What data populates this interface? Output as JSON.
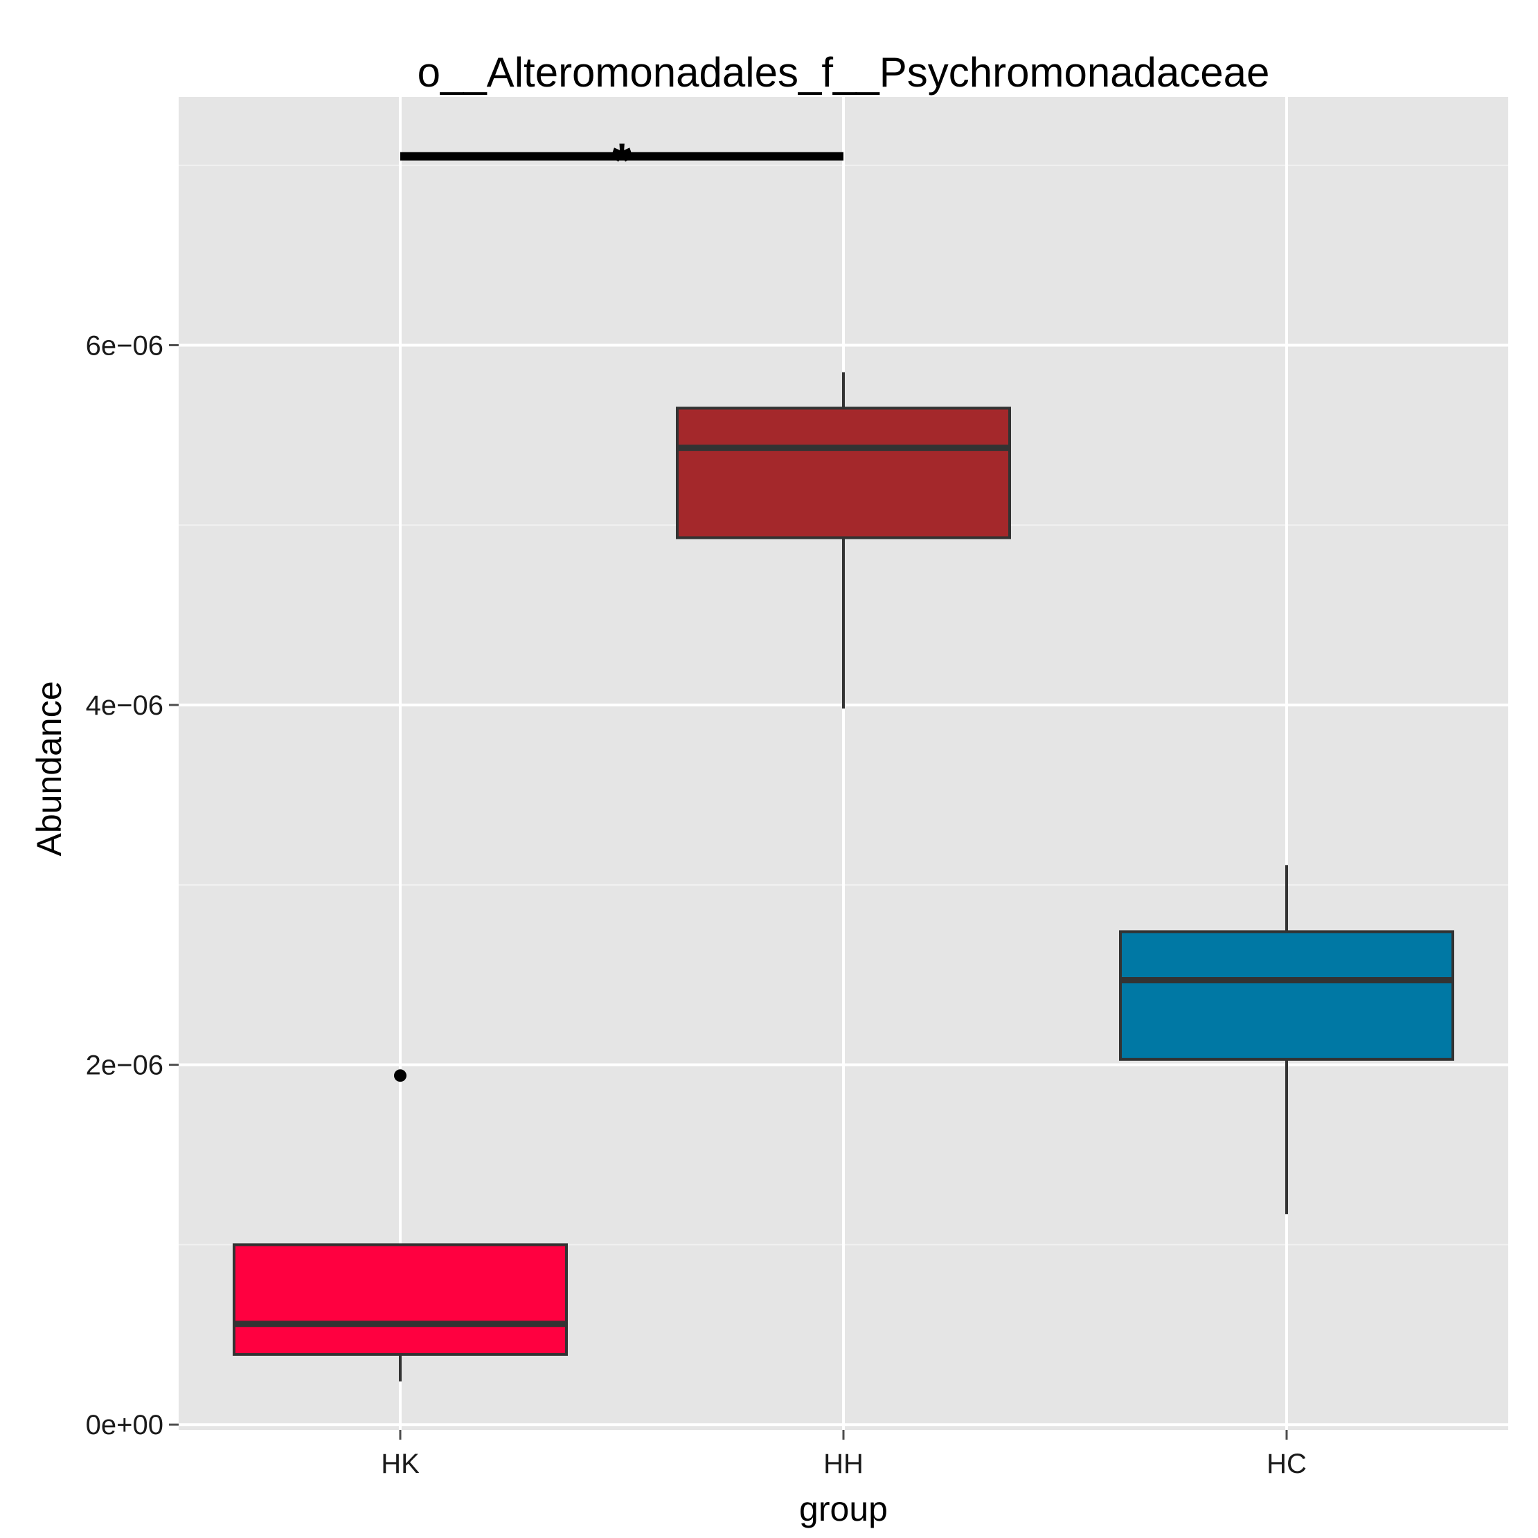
{
  "chart_data": {
    "type": "box",
    "title": "o__Alteromonadales_f__Psychromonadaceae",
    "xlabel": "group",
    "ylabel": "Abundance",
    "ylim": [
      -3e-08,
      7.38e-06
    ],
    "y_ticks": [
      {
        "value": 0,
        "label": "0e+00"
      },
      {
        "value": 2e-06,
        "label": "2e−06"
      },
      {
        "value": 4e-06,
        "label": "4e−06"
      },
      {
        "value": 6e-06,
        "label": "6e−06"
      }
    ],
    "grid": true,
    "categories": [
      "HK",
      "HH",
      "HC"
    ],
    "boxes": [
      {
        "group": "HK",
        "whisker_low": 2.4e-07,
        "q1": 3.9e-07,
        "median": 5.6e-07,
        "q3": 1e-06,
        "whisker_high": 1e-06,
        "outliers": [
          1.94e-06
        ],
        "color": "#ff0040"
      },
      {
        "group": "HH",
        "whisker_low": 3.98e-06,
        "q1": 4.93e-06,
        "median": 5.43e-06,
        "q3": 5.65e-06,
        "whisker_high": 5.85e-06,
        "outliers": [],
        "color": "#a4282b"
      },
      {
        "group": "HC",
        "whisker_low": 1.17e-06,
        "q1": 2.03e-06,
        "median": 2.47e-06,
        "q3": 2.74e-06,
        "whisker_high": 3.11e-06,
        "outliers": [],
        "color": "#0078a4"
      }
    ],
    "significance": [
      {
        "from": "HK",
        "to": "HH",
        "label": "*",
        "y": 7.05e-06
      }
    ]
  }
}
